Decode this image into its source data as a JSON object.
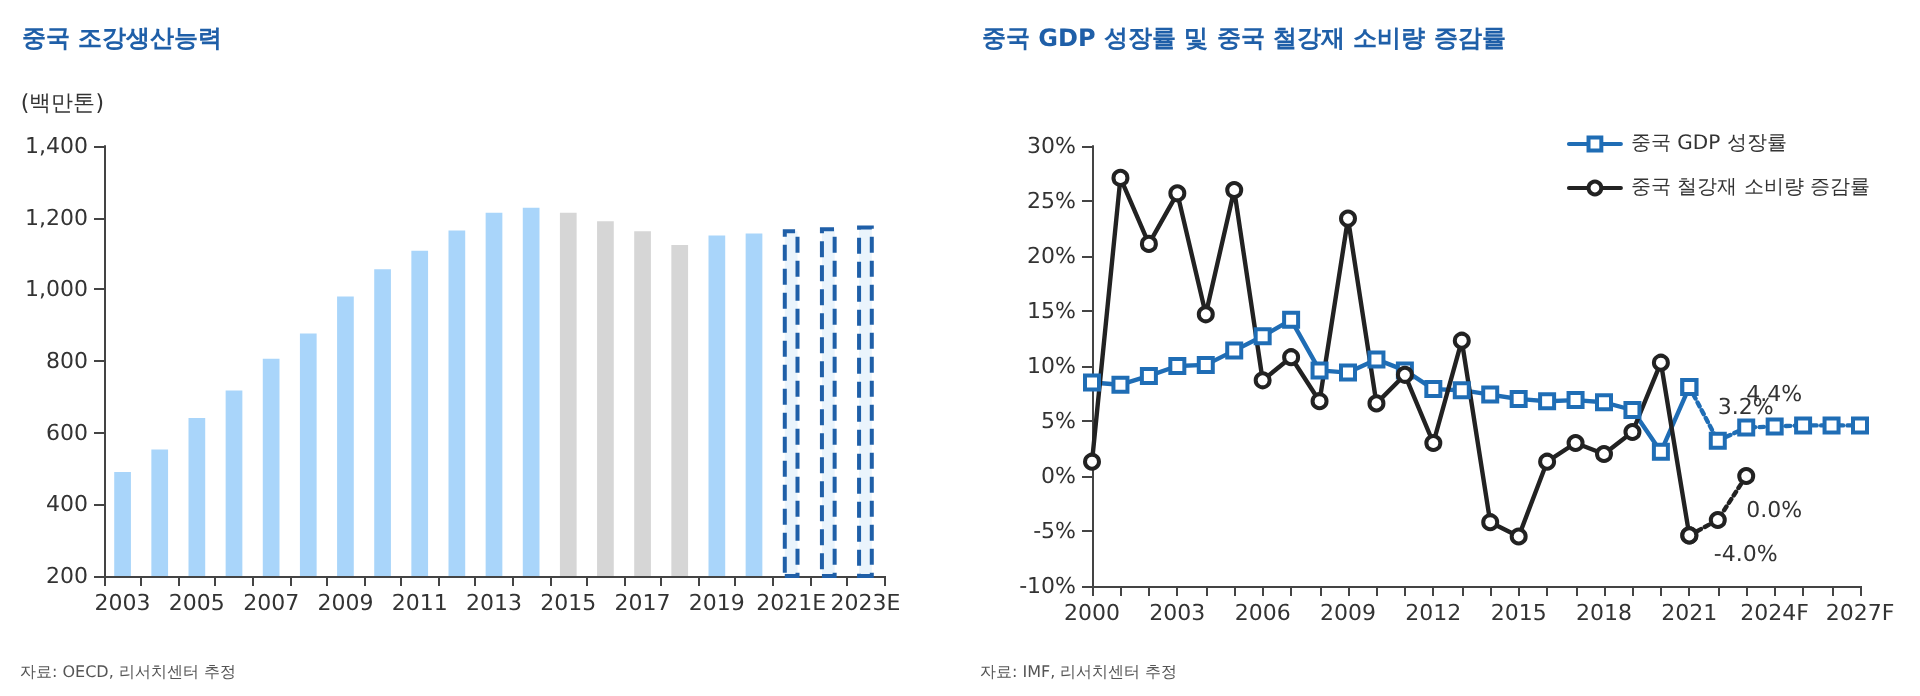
{
  "chart_data": [
    {
      "type": "bar",
      "title": "중국 조강생산능력",
      "ylabel": "(백만톤)",
      "categories": [
        "2003",
        null,
        "2005",
        null,
        "2007",
        null,
        "2009",
        null,
        "2011",
        null,
        "2013",
        null,
        "2015",
        null,
        "2017",
        null,
        "2019",
        null,
        "2021E",
        null,
        "2023E"
      ],
      "series": [
        {
          "colors": [
            "#a9d5fa",
            "#a9d5fa",
            "#a9d5fa",
            "#a9d5fa",
            "#a9d5fa",
            "#a9d5fa",
            "#a9d5fa",
            "#a9d5fa",
            "#a9d5fa",
            "#a9d5fa",
            "#a9d5fa",
            "#a9d5fa",
            "#d6d6d6",
            "#d6d6d6",
            "#d6d6d6",
            "#d6d6d6",
            "#a9d5fa",
            "#a9d5fa",
            null,
            null,
            null
          ],
          "values": [
            490,
            553,
            641,
            718,
            806,
            877,
            980,
            1056,
            1108,
            1164,
            1214,
            1228,
            1214,
            1190,
            1162,
            1124,
            1150,
            1156,
            null,
            null,
            null
          ]
        },
        {
          "color": "#1f5fa8",
          "line_style": "dashed",
          "values": [
            null,
            null,
            null,
            null,
            null,
            null,
            null,
            null,
            null,
            null,
            null,
            null,
            null,
            null,
            null,
            null,
            null,
            null,
            1168,
            1173,
            1178
          ]
        }
      ],
      "ylim": [
        200,
        1400
      ],
      "yticks": [
        200,
        400,
        600,
        800,
        {
          "value": 1000,
          "label": "1,000"
        },
        {
          "value": 1200,
          "label": "1,200"
        },
        {
          "value": 1400,
          "label": "1,400"
        }
      ],
      "annotations": [
        "자료: OECD, 리서치센터 추정"
      ]
    },
    {
      "type": "line",
      "title": "중국 GDP 성장률 및 중국 철강재 소비량 증감률",
      "categories": [
        "2000",
        null,
        null,
        "2003",
        null,
        null,
        "2006",
        null,
        null,
        "2009",
        null,
        null,
        "2012",
        null,
        null,
        "2015",
        null,
        null,
        "2018",
        null,
        null,
        "2021",
        null,
        null,
        "2024F",
        null,
        null,
        "2027F"
      ],
      "series": [
        {
          "name": "중국 GDP 성장률",
          "color": "#1f6db5",
          "marker": "square",
          "values": [
            8.5,
            8.3,
            9.1,
            10.0,
            10.1,
            11.4,
            12.7,
            14.2,
            9.6,
            9.4,
            10.6,
            9.6,
            7.9,
            7.8,
            7.4,
            7.0,
            6.8,
            6.9,
            6.7,
            6.0,
            2.2,
            8.1,
            null,
            null,
            null,
            null,
            null,
            null
          ]
        },
        {
          "name": "중국 철강재 소비량 증감률",
          "color": "#222222",
          "marker": "circle",
          "values": [
            1.3,
            27.1,
            21.1,
            25.7,
            14.7,
            26.0,
            8.7,
            10.8,
            6.8,
            23.4,
            6.6,
            9.2,
            3.0,
            12.3,
            -4.2,
            -5.5,
            1.3,
            3.0,
            2.0,
            4.0,
            10.3,
            -5.4,
            null,
            null,
            null,
            null,
            null,
            null
          ]
        },
        {
          "color": "#1f6db5",
          "marker": "square",
          "line_style": "dotted",
          "values": [
            null,
            null,
            null,
            null,
            null,
            null,
            null,
            null,
            null,
            null,
            null,
            null,
            null,
            null,
            null,
            null,
            null,
            null,
            null,
            null,
            null,
            8.1,
            3.2,
            4.4,
            4.5,
            4.6,
            4.6,
            4.6
          ],
          "value_labels": [
            null,
            null,
            null,
            null,
            null,
            null,
            null,
            null,
            null,
            null,
            null,
            null,
            null,
            null,
            null,
            null,
            null,
            null,
            null,
            null,
            null,
            null,
            "3.2%",
            "4.4%",
            null,
            null,
            null,
            null
          ]
        },
        {
          "color": "#222222",
          "marker": "circle",
          "line_style": "dotted",
          "values": [
            null,
            null,
            null,
            null,
            null,
            null,
            null,
            null,
            null,
            null,
            null,
            null,
            null,
            null,
            null,
            null,
            null,
            null,
            null,
            null,
            null,
            -5.4,
            -4.0,
            0.0,
            null,
            null,
            null,
            null
          ],
          "value_labels": [
            null,
            null,
            null,
            null,
            null,
            null,
            null,
            null,
            null,
            null,
            null,
            null,
            null,
            null,
            null,
            null,
            null,
            null,
            null,
            null,
            null,
            null,
            "-4.0%",
            "0.0%",
            null,
            null,
            null,
            null
          ]
        }
      ],
      "ylim": [
        -10,
        30
      ],
      "yticks": [
        {
          "value": -10,
          "label": "-10%"
        },
        {
          "value": -5,
          "label": "-5%"
        },
        {
          "value": 0,
          "label": "0%"
        },
        {
          "value": 5,
          "label": "5%"
        },
        {
          "value": 10,
          "label": "10%"
        },
        {
          "value": 15,
          "label": "15%"
        },
        {
          "value": 20,
          "label": "20%"
        },
        {
          "value": 25,
          "label": "25%"
        },
        {
          "value": 30,
          "label": "30%"
        }
      ],
      "legend": "top right",
      "annotations": [
        "자료: IMF, 리서치센터 추정"
      ]
    }
  ]
}
